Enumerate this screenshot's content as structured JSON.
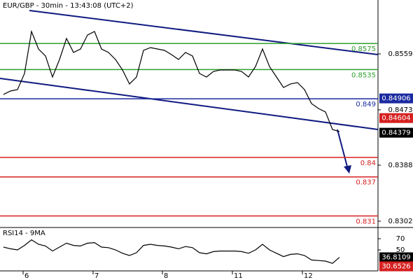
{
  "chart_data": [
    {
      "type": "line",
      "title": "EUR/GBP - 30min - 13:43:08 (UTC+2)",
      "x": [
        0,
        1,
        2,
        3,
        4,
        5,
        6,
        7,
        8,
        9,
        10,
        11,
        12,
        13,
        14,
        15,
        16,
        17,
        18,
        19,
        20,
        21,
        22,
        23,
        24,
        25,
        26,
        27,
        28,
        29,
        30,
        31,
        32,
        33,
        34,
        35,
        36,
        37,
        38,
        39,
        40,
        41,
        42,
        43,
        44,
        45,
        46,
        47,
        48
      ],
      "series": [
        {
          "color": "#000000",
          "values": [
            0.84967,
            0.8502,
            0.85042,
            0.85289,
            0.85934,
            0.85665,
            0.85558,
            0.85235,
            0.85504,
            0.85827,
            0.85612,
            0.85665,
            0.8588,
            0.85934,
            0.85665,
            0.85612,
            0.85504,
            0.85343,
            0.85128,
            0.85235,
            0.85644,
            0.85687,
            0.85665,
            0.85644,
            0.85579,
            0.85504,
            0.85612,
            0.85558,
            0.85289,
            0.85235,
            0.85321,
            0.85343,
            0.85343,
            0.85343,
            0.85321,
            0.85235,
            0.85396,
            0.85665,
            0.85396,
            0.85235,
            0.85074,
            0.85128,
            0.85149,
            0.85042,
            0.84827,
            0.84751,
            0.84698,
            0.84429,
            0.84397
          ]
        }
      ],
      "xlim": [
        -0.5,
        53.5
      ],
      "xticks": [
        {
          "value": 2.8,
          "label": "6"
        },
        {
          "value": 12.8,
          "label": "7"
        },
        {
          "value": 22.7,
          "label": "8"
        },
        {
          "value": 32.7,
          "label": "11"
        },
        {
          "value": 42.7,
          "label": "12"
        }
      ],
      "ylim": [
        0.82923,
        0.86418
      ],
      "yticks": [
        0.8302,
        0.8388,
        0.8473,
        0.8559
      ],
      "levels": [
        {
          "value": 0.8575,
          "color": "#2ca02c"
        },
        {
          "value": 0.8535,
          "color": "#2ca02c"
        },
        {
          "value": 0.849,
          "color": "#1a2aa0"
        },
        {
          "value": 0.84,
          "color": "#d62020"
        },
        {
          "value": 0.837,
          "color": "#d62020"
        },
        {
          "value": 0.831,
          "color": "#d62020"
        }
      ],
      "price_boxes": [
        {
          "value": 0.84906,
          "color": "#1a2aa0"
        },
        {
          "value": 0.84604,
          "color": "#d62020"
        },
        {
          "value": 0.84379,
          "color": "#000000"
        }
      ]
    },
    {
      "type": "line",
      "title": "RSI14 - 9MA",
      "x": [
        0,
        1,
        2,
        3,
        4,
        5,
        6,
        7,
        8,
        9,
        10,
        11,
        12,
        13,
        14,
        15,
        16,
        17,
        18,
        19,
        20,
        21,
        22,
        23,
        24,
        25,
        26,
        27,
        28,
        29,
        30,
        31,
        32,
        33,
        34,
        35,
        36,
        37,
        38,
        39,
        40,
        41,
        42,
        43,
        44,
        45,
        46,
        47,
        48
      ],
      "series": [
        {
          "color": "#000000",
          "values": [
            55,
            52,
            50,
            58,
            68,
            60,
            57,
            48,
            55,
            62,
            58,
            57,
            62,
            63,
            55,
            54,
            50,
            44,
            40,
            45,
            58,
            60,
            58,
            57,
            55,
            52,
            56,
            54,
            45,
            43,
            47,
            48,
            48,
            48,
            47,
            44,
            50,
            60,
            50,
            44,
            38,
            42,
            43,
            40,
            32,
            31,
            30,
            26,
            36.81
          ]
        }
      ],
      "xlim": [
        -0.5,
        53.5
      ],
      "ylim": [
        12.5,
        87.5
      ],
      "yticks": [
        50,
        70
      ],
      "price_boxes": [
        {
          "value": 36.8109,
          "color": "#000000"
        },
        {
          "value": 30.6526,
          "color": "#d62020"
        }
      ]
    }
  ]
}
